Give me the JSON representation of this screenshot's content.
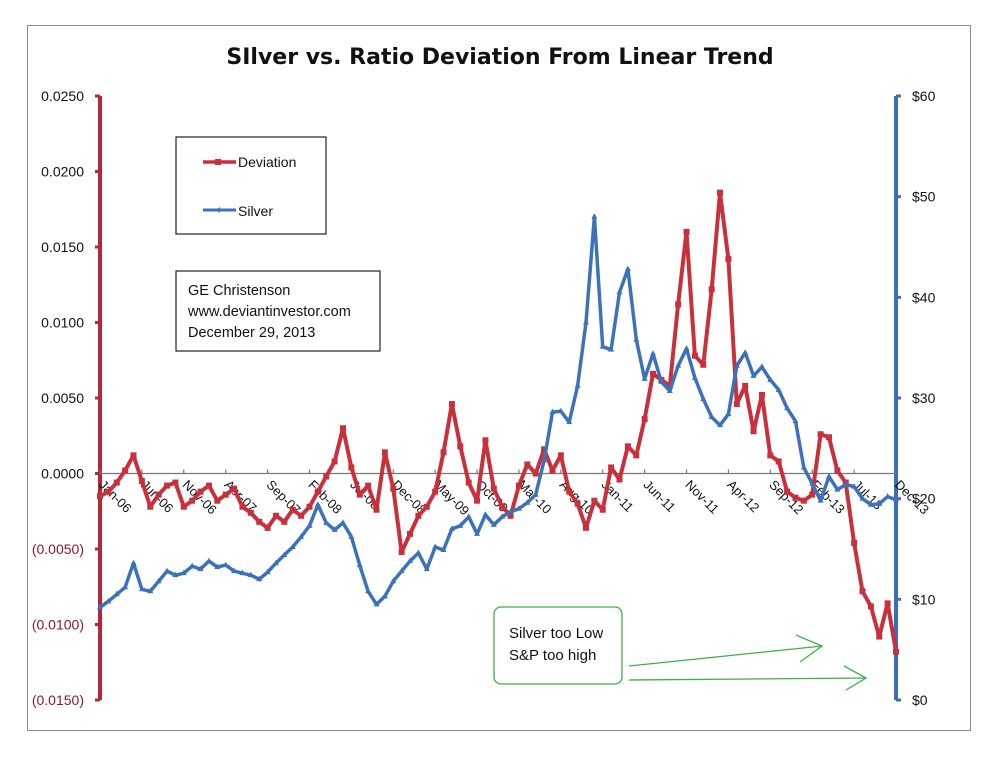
{
  "chart_data": {
    "type": "line",
    "title": "SIlver vs. Ratio Deviation From Linear Trend",
    "xlabel": "",
    "ylabel_left": "",
    "ylabel_right": "",
    "grid": false,
    "legend_position": "top-left",
    "x_tick_labels": [
      "Jan-06",
      "Jun-06",
      "Nov-06",
      "Apr-07",
      "Sep-07",
      "Feb-08",
      "Jul-08",
      "Dec-08",
      "May-09",
      "Oct-09",
      "Mar-10",
      "Aug-10",
      "Jan-11",
      "Jun-11",
      "Nov-11",
      "Apr-12",
      "Sep-12",
      "Feb-13",
      "Jul-13",
      "Dec-13"
    ],
    "x_range": [
      "Jan-06",
      "Dec-13"
    ],
    "y_left": {
      "range": [
        -0.015,
        0.025
      ],
      "ticks": [
        0.025,
        0.02,
        0.015,
        0.01,
        0.005,
        0.0,
        -0.005,
        -0.01,
        -0.015
      ],
      "tick_labels": [
        "0.0250",
        "0.0200",
        "0.0150",
        "0.0100",
        "0.0050",
        "0.0000",
        "(0.0050)",
        "(0.0100)",
        "(0.0150)"
      ],
      "color": "#b0283a"
    },
    "y_right": {
      "range": [
        0,
        60
      ],
      "ticks": [
        60,
        50,
        40,
        30,
        20,
        10,
        0
      ],
      "tick_labels": [
        "$60",
        "$50",
        "$40",
        "$30",
        "$20",
        "$10",
        "$0"
      ],
      "color": "#3a6fb5"
    },
    "series": [
      {
        "name": "Deviation",
        "axis": "left",
        "color": "#c8303c",
        "values": [
          -0.0015,
          -0.0012,
          -0.0006,
          0.0002,
          0.0012,
          -0.0005,
          -0.0022,
          -0.0014,
          -0.0008,
          -0.0006,
          -0.0022,
          -0.0018,
          -0.0012,
          -0.0008,
          -0.0018,
          -0.0014,
          -0.001,
          -0.0022,
          -0.0026,
          -0.0032,
          -0.0036,
          -0.0028,
          -0.0032,
          -0.0024,
          -0.0028,
          -0.0022,
          -0.0012,
          -0.0002,
          0.0008,
          0.003,
          0.0004,
          -0.0014,
          -0.0008,
          -0.0024,
          0.0014,
          -0.001,
          -0.0052,
          -0.004,
          -0.0028,
          -0.0022,
          -0.0012,
          0.0014,
          0.0046,
          0.0018,
          -0.0006,
          -0.0018,
          0.0022,
          -0.001,
          -0.0022,
          -0.0028,
          -0.0008,
          0.0006,
          0.0,
          0.0016,
          0.0002,
          0.0012,
          -0.0012,
          -0.002,
          -0.0036,
          -0.0018,
          -0.0024,
          0.0004,
          -0.0004,
          0.0018,
          0.0012,
          0.0036,
          0.0066,
          0.0062,
          0.0058,
          0.0112,
          0.016,
          0.0078,
          0.0072,
          0.0122,
          0.0186,
          0.0142,
          0.0046,
          0.0058,
          0.0028,
          0.0052,
          0.0012,
          0.0008,
          -0.0012,
          -0.0016,
          -0.0018,
          -0.0014,
          0.0026,
          0.0024,
          0.0002,
          -0.0006,
          -0.0046,
          -0.0078,
          -0.0088,
          -0.0108,
          -0.0086,
          -0.0118
        ]
      },
      {
        "name": "Silver",
        "axis": "right",
        "color": "#3b72ba",
        "values": [
          9.2,
          9.8,
          10.5,
          11.2,
          13.6,
          11.0,
          10.8,
          11.8,
          12.8,
          12.4,
          12.6,
          13.3,
          13.0,
          13.8,
          13.2,
          13.4,
          12.8,
          12.6,
          12.4,
          12.0,
          12.7,
          13.6,
          14.4,
          15.2,
          16.2,
          17.3,
          19.4,
          17.6,
          16.9,
          17.6,
          16.2,
          13.4,
          10.8,
          9.5,
          10.3,
          11.8,
          12.8,
          13.8,
          14.6,
          13.0,
          15.2,
          14.9,
          17.0,
          17.3,
          18.2,
          16.5,
          18.4,
          17.4,
          18.2,
          18.7,
          19.0,
          19.6,
          20.4,
          23.8,
          28.6,
          28.7,
          27.6,
          31.2,
          37.5,
          48.0,
          35.1,
          34.8,
          40.5,
          42.8,
          35.8,
          31.9,
          34.4,
          31.6,
          30.7,
          33.2,
          34.9,
          32.0,
          29.9,
          28.1,
          27.3,
          28.4,
          33.2,
          34.5,
          32.2,
          33.1,
          31.8,
          30.8,
          29.0,
          27.7,
          23.1,
          21.5,
          19.8,
          22.2,
          20.9,
          21.4,
          21.2,
          20.0,
          19.4,
          19.5,
          20.2,
          19.9
        ]
      }
    ]
  },
  "legend": {
    "items": [
      {
        "label": "Deviation",
        "color": "#c8303c"
      },
      {
        "label": "Silver",
        "color": "#3b72ba"
      }
    ]
  },
  "note": {
    "line1": "GE Christenson",
    "line2": "www.deviantinvestor.com",
    "line3": "December 29, 2013"
  },
  "callout": {
    "line1": "Silver too Low",
    "line2": "S&P too high",
    "color": "#3cb04a"
  }
}
